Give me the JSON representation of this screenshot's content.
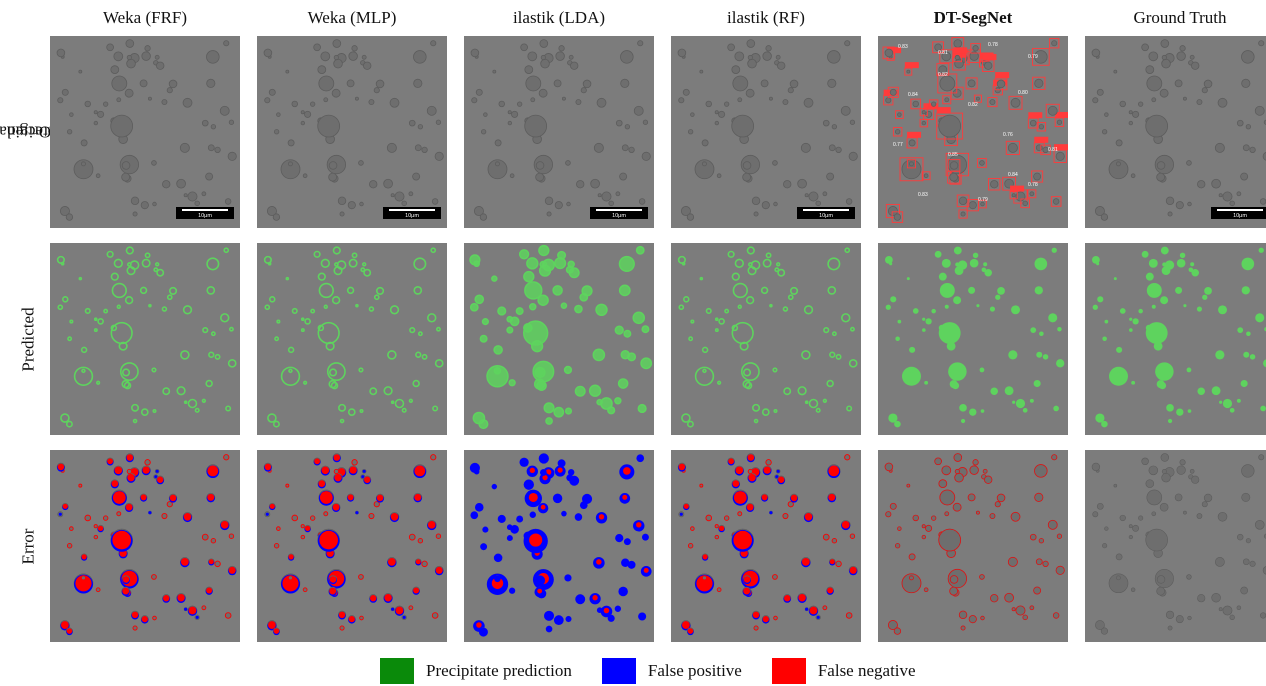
{
  "columns": [
    {
      "label": "Weka (FRF)",
      "bold": false
    },
    {
      "label": "Weka (MLP)",
      "bold": false
    },
    {
      "label": "ilastik (LDA)",
      "bold": false
    },
    {
      "label": "ilastik (RF)",
      "bold": false
    },
    {
      "label": "DT-SegNet",
      "bold": true
    },
    {
      "label": "Ground Truth",
      "bold": false
    }
  ],
  "rows": [
    {
      "label_line1": "Original /",
      "label_line2": "Detected"
    },
    {
      "label_line1": "Predicted",
      "label_line2": ""
    },
    {
      "label_line1": "Error",
      "label_line2": ""
    }
  ],
  "scale_bar_label": "10μm",
  "detection_scores": [
    "0.83",
    "0.81",
    "0.78",
    "0.79",
    "0.84",
    "0.82",
    "0.80",
    "0.77",
    "0.85",
    "0.76",
    "0.81",
    "0.83",
    "0.79",
    "0.78",
    "0.82",
    "0.84"
  ],
  "legend": [
    {
      "label": "Precipitate prediction",
      "color": "#0a8a0a"
    },
    {
      "label": "False positive",
      "color": "#0000ff"
    },
    {
      "label": "False negative",
      "color": "#ff0000"
    }
  ],
  "colors": {
    "background_gray": "#7c7c7c",
    "particle_gray": "#6e6e6e",
    "prediction_green": "#5ed35e",
    "error_blue": "#0000ff",
    "error_red": "#ff0000",
    "detection_box": "#ff3b3b"
  }
}
